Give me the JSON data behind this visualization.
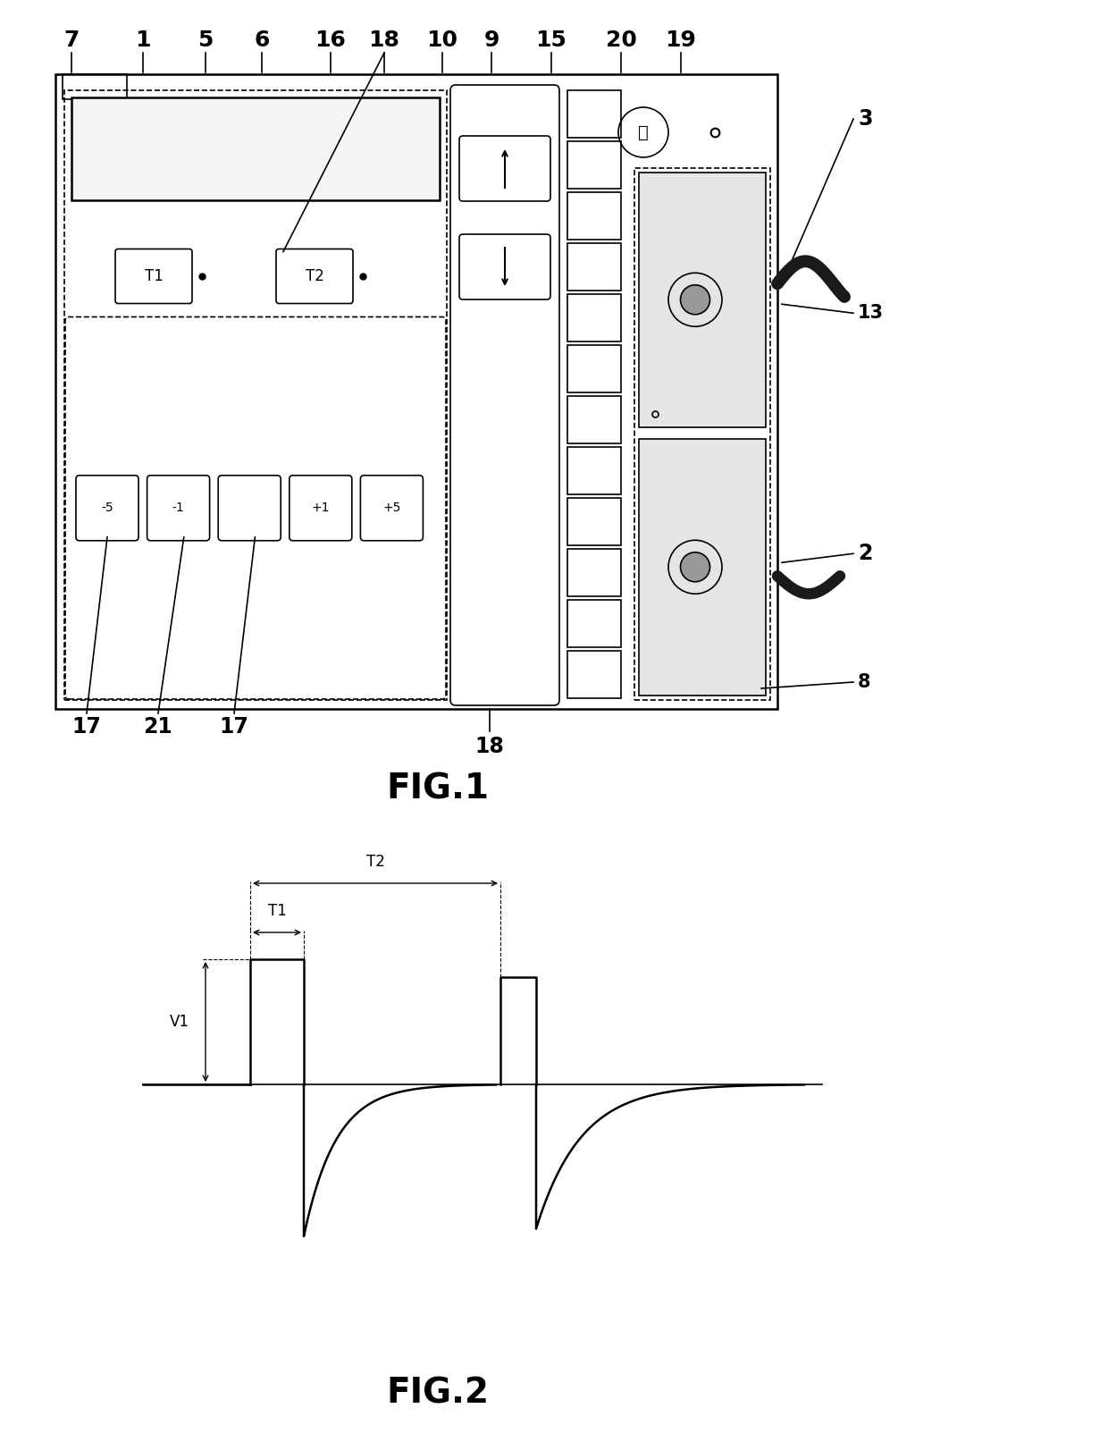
{
  "bg_color": "#ffffff",
  "line_color": "#000000",
  "fig1_title": "FIG.1",
  "fig2_title": "FIG.2",
  "top_labels": [
    "7",
    "1",
    "5",
    "6",
    "16",
    "18",
    "10",
    "9",
    "15",
    "20",
    "19"
  ],
  "right_labels": [
    "3",
    "13",
    "2",
    "8"
  ],
  "bottom_labels": [
    "17",
    "21",
    "17"
  ]
}
